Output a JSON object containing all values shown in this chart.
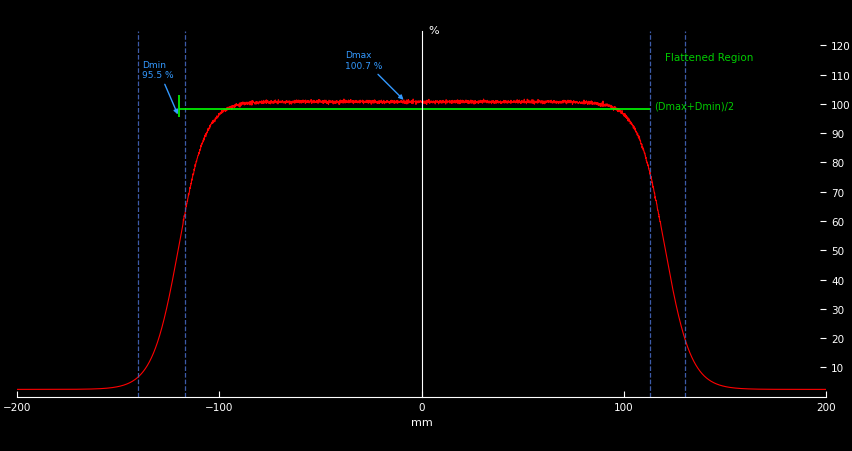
{
  "background_color": "#000000",
  "plot_bg_color": "#000000",
  "text_color": "#ffffff",
  "profile_color": "#ff0000",
  "dmin_color": "#00ff00",
  "annotation_color": "#3399ff",
  "flattened_region_color": "#00cc00",
  "dashed_line_color": "#4466bb",
  "xlabel": "mm",
  "ylabel": "%",
  "xlim": [
    -200,
    200
  ],
  "ylim": [
    0,
    125
  ],
  "yticks": [
    10,
    20,
    30,
    40,
    50,
    60,
    70,
    80,
    90,
    100,
    110,
    120
  ],
  "xticks": [
    -200,
    -100,
    0,
    100,
    200
  ],
  "dashed_vlines": [
    -140,
    -117,
    113,
    130
  ],
  "dmin_x": -120,
  "dmin_y": 95.5,
  "dmin_label": "Dmin\n95.5 %",
  "dmax_x": -8,
  "dmax_y": 100.7,
  "dmax_label": "Dmax\n100.7 %",
  "flatreg_label": "Flattened Region",
  "dmaxdmin_label": "(Dmax+Dmin)/2",
  "green_hline_y": 98.1,
  "green_hline_xmin": -120,
  "green_hline_xmax": 113,
  "green_vline_x": -120,
  "green_vline_ymin": 95.5,
  "green_vline_ymax": 103,
  "figsize": [
    8.52,
    4.52
  ],
  "dpi": 100
}
